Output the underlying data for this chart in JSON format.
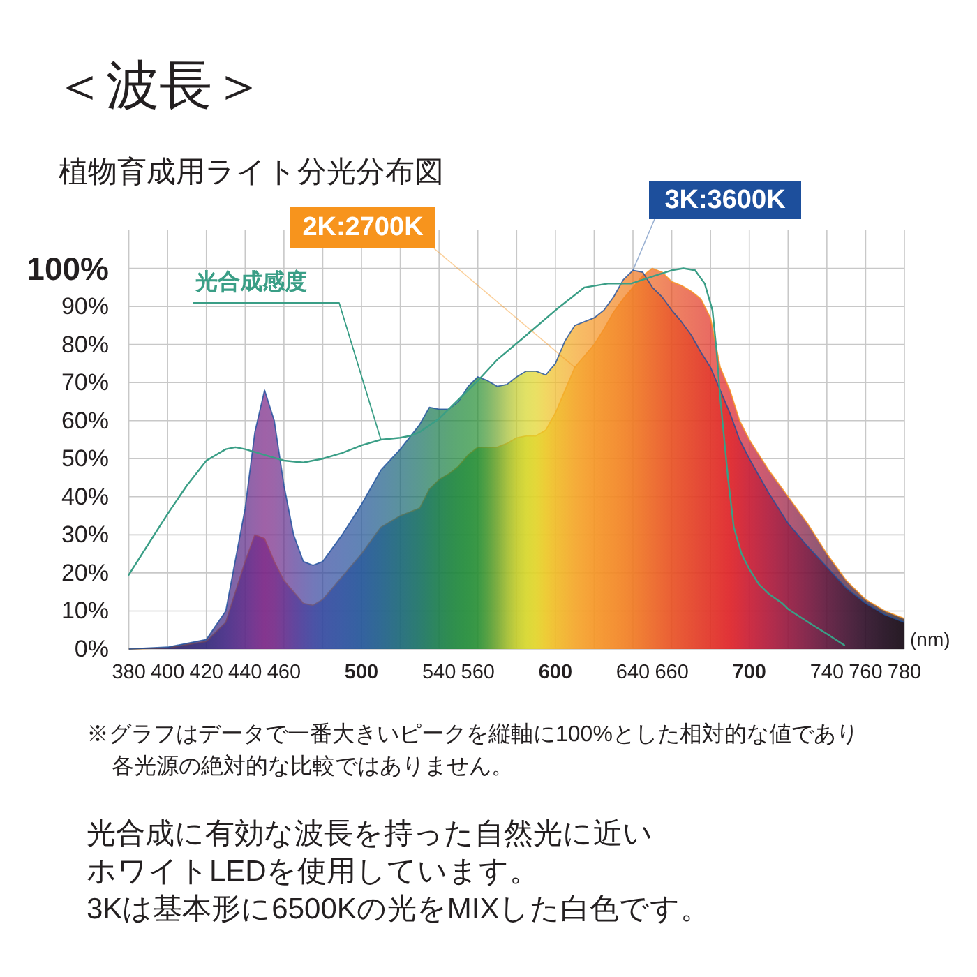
{
  "chart_data": {
    "type": "area",
    "title": "＜波長＞",
    "subtitle": "植物育成用ライト分光分布図",
    "xlabel": "(nm)",
    "x": [
      380,
      400,
      420,
      430,
      440,
      445,
      450,
      455,
      460,
      465,
      470,
      475,
      480,
      490,
      500,
      510,
      520,
      530,
      535,
      540,
      545,
      550,
      555,
      560,
      565,
      570,
      575,
      580,
      585,
      590,
      595,
      600,
      605,
      610,
      615,
      620,
      625,
      630,
      635,
      640,
      645,
      650,
      655,
      660,
      665,
      670,
      675,
      680,
      685,
      690,
      695,
      700,
      710,
      720,
      730,
      740,
      750,
      760,
      770,
      780
    ],
    "xlim": [
      380,
      780
    ],
    "xticks": [
      380,
      400,
      420,
      440,
      460,
      {
        "value": 480,
        "label": null
      },
      500,
      {
        "value": 520,
        "label": null
      },
      540,
      560,
      {
        "value": 580,
        "label": null
      },
      600,
      {
        "value": 620,
        "label": null
      },
      640,
      660,
      {
        "value": 680,
        "label": null
      },
      700,
      {
        "value": 720,
        "label": null
      },
      740,
      760,
      780
    ],
    "ylim": [
      0,
      110
    ],
    "yticks": [
      {
        "value": 0,
        "label": "0%"
      },
      {
        "value": 10,
        "label": "10%"
      },
      {
        "value": 20,
        "label": "20%"
      },
      {
        "value": 30,
        "label": "30%"
      },
      {
        "value": 40,
        "label": "40%"
      },
      {
        "value": 50,
        "label": "50%"
      },
      {
        "value": 60,
        "label": "60%"
      },
      {
        "value": 70,
        "label": "70%"
      },
      {
        "value": 80,
        "label": "80%"
      },
      {
        "value": 90,
        "label": "90%"
      },
      {
        "value": 100,
        "label": "100%"
      }
    ],
    "grid": true,
    "series": [
      {
        "name": "2K:2700K",
        "color": "#f7941d",
        "values": [
          0,
          0.3,
          2,
          7,
          23,
          30,
          29,
          23,
          18,
          15,
          12,
          11.5,
          13,
          19,
          25,
          32,
          35,
          37,
          42,
          44.5,
          46,
          48,
          51,
          53,
          53,
          53,
          54,
          55.5,
          56,
          56,
          57.5,
          62,
          68,
          74,
          77,
          80,
          84,
          88.5,
          92,
          95,
          98,
          100,
          99,
          96.5,
          95.5,
          94,
          92,
          87,
          74,
          68,
          60,
          55,
          47,
          40,
          33,
          25,
          18,
          13,
          10,
          8
        ],
        "colors": [
          "#2b1e4a",
          "#2e2566",
          "#33287a",
          "#452a85",
          "#5e2a88",
          "#6d2888",
          "#7a2585",
          "#752a88",
          "#66308e",
          "#563695",
          "#483d9a",
          "#3d449e",
          "#34499f",
          "#2c4f9e",
          "#235598",
          "#1f5e8a",
          "#1c6878",
          "#1b7264",
          "#1b7858",
          "#1c7e4c",
          "#1d8342",
          "#1f883c",
          "#228c38",
          "#2a9036",
          "#4a9a34",
          "#74a832",
          "#a0bc30",
          "#c3cc2c",
          "#d6d62a",
          "#e2d428",
          "#ecc826",
          "#f0bb27",
          "#f2b128",
          "#f4a629",
          "#f59e28",
          "#f59626",
          "#f48f25",
          "#f38924",
          "#f28223",
          "#f07a23",
          "#ee7023",
          "#ec6624",
          "#ea5c24",
          "#e85224",
          "#e64a25",
          "#e44225",
          "#e23a26",
          "#e13226",
          "#e02a26",
          "#de2227",
          "#d41f2d",
          "#c81d34",
          "#b01b3c",
          "#951a40",
          "#7a1940",
          "#5e183c",
          "#461534",
          "#30112a",
          "#200c1e",
          "#140812"
        ]
      },
      {
        "name": "3K:3600K",
        "color": "#1d4f9c",
        "values": [
          0,
          0.5,
          2.5,
          10,
          37,
          57,
          68,
          60,
          43,
          30,
          23,
          22,
          23,
          30,
          38,
          47,
          52.5,
          59,
          63.5,
          63,
          63,
          65,
          69,
          71.5,
          70.5,
          69,
          69.5,
          71.5,
          73,
          73,
          72,
          75,
          81,
          85,
          86,
          87,
          89,
          92.5,
          97,
          99.5,
          99,
          95,
          92.5,
          89,
          86,
          82.5,
          78,
          74,
          68,
          62,
          55,
          50,
          41,
          33,
          27,
          21.5,
          16,
          12,
          9,
          7
        ],
        "colors": [
          "#2b1e4a",
          "#2e2566",
          "#33287a",
          "#452a85",
          "#5e2a88",
          "#6d2888",
          "#7a2585",
          "#752a88",
          "#66308e",
          "#563695",
          "#483d9a",
          "#3d449e",
          "#34499f",
          "#2c4f9e",
          "#235598",
          "#1f5e8a",
          "#1c6878",
          "#1b7264",
          "#1b7858",
          "#1c7e4c",
          "#1d8342",
          "#1f883c",
          "#228c38",
          "#2a9036",
          "#4a9a34",
          "#74a832",
          "#a0bc30",
          "#c3cc2c",
          "#d6d62a",
          "#e2d428",
          "#ecc826",
          "#f0bb27",
          "#f2b128",
          "#f4a629",
          "#f59e28",
          "#f59626",
          "#f48f25",
          "#f38924",
          "#f28223",
          "#f07a23",
          "#ee7023",
          "#ec6624",
          "#ea5c24",
          "#e85224",
          "#e64a25",
          "#e44225",
          "#e23a26",
          "#e13226",
          "#e02a26",
          "#de2227",
          "#d41f2d",
          "#c81d34",
          "#b01b3c",
          "#951a40",
          "#7a1940",
          "#5e183c",
          "#461534",
          "#30112a",
          "#200c1e",
          "#140812"
        ]
      },
      {
        "name": "光合成感度",
        "type": "line",
        "color": "#3a9e86",
        "x": [
          380,
          390,
          400,
          410,
          420,
          430,
          435,
          440,
          450,
          460,
          470,
          480,
          490,
          500,
          510,
          520,
          525,
          530,
          540,
          550,
          560,
          570,
          584,
          600,
          615,
          627,
          639,
          651,
          660,
          666,
          672,
          677,
          681,
          683,
          685,
          689,
          692,
          696,
          700,
          705,
          710,
          717,
          720,
          732,
          740,
          749
        ],
        "values": [
          19.5,
          27.5,
          35.5,
          43,
          49.5,
          52.5,
          53,
          52.5,
          51,
          49.5,
          49,
          50,
          51.5,
          53.5,
          55,
          55.5,
          56,
          57,
          60.5,
          65.5,
          70.5,
          76,
          82,
          89,
          95,
          96,
          96,
          98,
          99.5,
          100,
          99.5,
          96,
          89,
          79,
          66,
          45,
          32,
          25,
          21,
          17,
          14.5,
          12,
          10.5,
          6.5,
          4,
          1
        ]
      }
    ],
    "annotations": [
      "※グラフはデータで一番大きいピークを縦軸に100%とした相対的な値であり各光源の絶対的な比較ではありません。",
      "光合成に有効な波長を持った自然光に近いホワイトLEDを使用しています。3Kは基本形に6500Kの光をMIXした白色です。"
    ]
  }
}
